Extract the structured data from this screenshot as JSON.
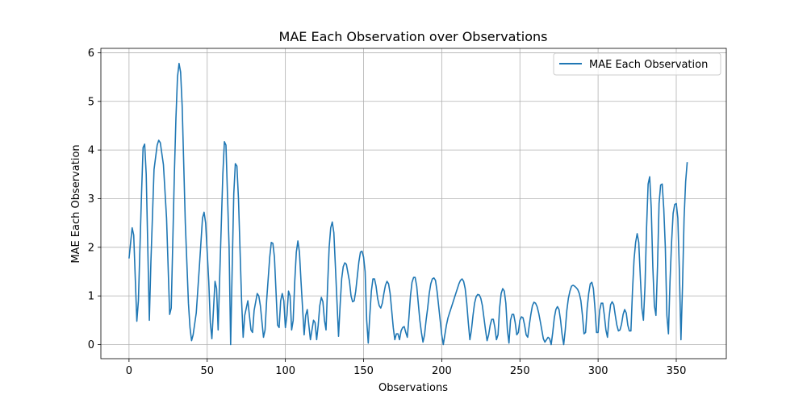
{
  "chart_data": {
    "type": "line",
    "title": "MAE Each Observation over Observations",
    "xlabel": "Observations",
    "ylabel": "MAE Each Observation",
    "xlim": [
      -18,
      382
    ],
    "ylim": [
      -0.29,
      6.09
    ],
    "xticks": [
      0,
      50,
      100,
      150,
      200,
      250,
      300,
      350
    ],
    "yticks": [
      0,
      1,
      2,
      3,
      4,
      5,
      6
    ],
    "grid": true,
    "legend_position": "top-right",
    "line_color": "#1f77b4",
    "series": [
      {
        "name": "MAE Each Observation",
        "points": [
          [
            0,
            1.77
          ],
          [
            2,
            2.4
          ],
          [
            3,
            2.25
          ],
          [
            5,
            0.48
          ],
          [
            6,
            0.9
          ],
          [
            8,
            3.1
          ],
          [
            9,
            4.05
          ],
          [
            10,
            4.12
          ],
          [
            11,
            3.5
          ],
          [
            13,
            0.5
          ],
          [
            14,
            1.7
          ],
          [
            16,
            3.6
          ],
          [
            18,
            4.1
          ],
          [
            19,
            4.2
          ],
          [
            20,
            4.15
          ],
          [
            22,
            3.7
          ],
          [
            24,
            2.6
          ],
          [
            26,
            0.62
          ],
          [
            27,
            0.75
          ],
          [
            29,
            3.5
          ],
          [
            30,
            4.65
          ],
          [
            31,
            5.5
          ],
          [
            32,
            5.78
          ],
          [
            33,
            5.6
          ],
          [
            34,
            4.9
          ],
          [
            36,
            2.5
          ],
          [
            38,
            0.85
          ],
          [
            39,
            0.35
          ],
          [
            40,
            0.08
          ],
          [
            41,
            0.2
          ],
          [
            43,
            0.65
          ],
          [
            45,
            1.6
          ],
          [
            47,
            2.6
          ],
          [
            48,
            2.72
          ],
          [
            49,
            2.5
          ],
          [
            51,
            1.3
          ],
          [
            52,
            0.45
          ],
          [
            53,
            0.12
          ],
          [
            55,
            1.3
          ],
          [
            56,
            1.15
          ],
          [
            57,
            0.3
          ],
          [
            58,
            1.4
          ],
          [
            60,
            3.5
          ],
          [
            61,
            4.17
          ],
          [
            62,
            4.1
          ],
          [
            64,
            2.0
          ],
          [
            65,
            0.0
          ],
          [
            66,
            1.6
          ],
          [
            67,
            3.1
          ],
          [
            68,
            3.72
          ],
          [
            69,
            3.67
          ],
          [
            70,
            3.0
          ],
          [
            72,
            0.9
          ],
          [
            73,
            0.15
          ],
          [
            74,
            0.6
          ],
          [
            76,
            0.9
          ],
          [
            77,
            0.6
          ],
          [
            78,
            0.3
          ],
          [
            79,
            0.25
          ],
          [
            80,
            0.7
          ],
          [
            82,
            1.05
          ],
          [
            83,
            1.0
          ],
          [
            84,
            0.8
          ],
          [
            86,
            0.15
          ],
          [
            87,
            0.3
          ],
          [
            88,
            0.9
          ],
          [
            90,
            1.8
          ],
          [
            91,
            2.1
          ],
          [
            92,
            2.08
          ],
          [
            93,
            1.8
          ],
          [
            95,
            0.4
          ],
          [
            96,
            0.35
          ],
          [
            97,
            0.9
          ],
          [
            98,
            1.05
          ],
          [
            99,
            0.9
          ],
          [
            100,
            0.35
          ],
          [
            101,
            0.6
          ],
          [
            102,
            1.1
          ],
          [
            103,
            1.0
          ],
          [
            104,
            0.3
          ],
          [
            105,
            0.5
          ],
          [
            106,
            1.3
          ],
          [
            107,
            1.9
          ],
          [
            108,
            2.13
          ],
          [
            109,
            1.9
          ],
          [
            110,
            1.3
          ],
          [
            112,
            0.2
          ],
          [
            113,
            0.6
          ],
          [
            114,
            0.72
          ],
          [
            115,
            0.4
          ],
          [
            116,
            0.1
          ],
          [
            118,
            0.5
          ],
          [
            119,
            0.45
          ],
          [
            120,
            0.1
          ],
          [
            121,
            0.4
          ],
          [
            122,
            0.8
          ],
          [
            123,
            0.97
          ],
          [
            124,
            0.88
          ],
          [
            125,
            0.5
          ],
          [
            126,
            0.3
          ],
          [
            127,
            1.2
          ],
          [
            128,
            2.0
          ],
          [
            129,
            2.4
          ],
          [
            130,
            2.52
          ],
          [
            131,
            2.3
          ],
          [
            132,
            1.6
          ],
          [
            134,
            0.17
          ],
          [
            135,
            0.8
          ],
          [
            136,
            1.35
          ],
          [
            137,
            1.6
          ],
          [
            138,
            1.68
          ],
          [
            139,
            1.65
          ],
          [
            141,
            1.3
          ],
          [
            142,
            1.0
          ],
          [
            143,
            0.88
          ],
          [
            144,
            0.9
          ],
          [
            145,
            1.1
          ],
          [
            146,
            1.4
          ],
          [
            147,
            1.7
          ],
          [
            148,
            1.9
          ],
          [
            149,
            1.92
          ],
          [
            150,
            1.8
          ],
          [
            151,
            1.5
          ],
          [
            152,
            0.5
          ],
          [
            153,
            0.03
          ],
          [
            154,
            0.6
          ],
          [
            155,
            1.1
          ],
          [
            156,
            1.35
          ],
          [
            157,
            1.35
          ],
          [
            158,
            1.2
          ],
          [
            159,
            0.95
          ],
          [
            160,
            0.8
          ],
          [
            161,
            0.75
          ],
          [
            162,
            0.85
          ],
          [
            163,
            1.05
          ],
          [
            164,
            1.22
          ],
          [
            165,
            1.3
          ],
          [
            166,
            1.25
          ],
          [
            167,
            1.05
          ],
          [
            168,
            0.7
          ],
          [
            169,
            0.35
          ],
          [
            170,
            0.1
          ],
          [
            171,
            0.22
          ],
          [
            172,
            0.22
          ],
          [
            173,
            0.1
          ],
          [
            174,
            0.28
          ],
          [
            175,
            0.35
          ],
          [
            176,
            0.37
          ],
          [
            177,
            0.25
          ],
          [
            178,
            0.15
          ],
          [
            179,
            0.55
          ],
          [
            180,
            1.0
          ],
          [
            181,
            1.28
          ],
          [
            182,
            1.38
          ],
          [
            183,
            1.38
          ],
          [
            184,
            1.2
          ],
          [
            185,
            0.85
          ],
          [
            186,
            0.5
          ],
          [
            187,
            0.25
          ],
          [
            188,
            0.05
          ],
          [
            189,
            0.2
          ],
          [
            190,
            0.5
          ],
          [
            191,
            0.75
          ],
          [
            192,
            1.05
          ],
          [
            193,
            1.25
          ],
          [
            194,
            1.35
          ],
          [
            195,
            1.37
          ],
          [
            196,
            1.32
          ],
          [
            197,
            1.1
          ],
          [
            198,
            0.8
          ],
          [
            199,
            0.5
          ],
          [
            200,
            0.2
          ],
          [
            201,
            0.0
          ],
          [
            202,
            0.2
          ],
          [
            203,
            0.4
          ],
          [
            204,
            0.55
          ],
          [
            205,
            0.65
          ],
          [
            206,
            0.75
          ],
          [
            207,
            0.85
          ],
          [
            208,
            0.95
          ],
          [
            209,
            1.05
          ],
          [
            210,
            1.15
          ],
          [
            211,
            1.25
          ],
          [
            212,
            1.32
          ],
          [
            213,
            1.35
          ],
          [
            214,
            1.3
          ],
          [
            215,
            1.15
          ],
          [
            216,
            0.85
          ],
          [
            217,
            0.45
          ],
          [
            218,
            0.1
          ],
          [
            219,
            0.3
          ],
          [
            220,
            0.6
          ],
          [
            221,
            0.85
          ],
          [
            222,
            0.98
          ],
          [
            223,
            1.03
          ],
          [
            224,
            1.02
          ],
          [
            225,
            0.95
          ],
          [
            226,
            0.8
          ],
          [
            227,
            0.55
          ],
          [
            228,
            0.3
          ],
          [
            229,
            0.08
          ],
          [
            230,
            0.2
          ],
          [
            231,
            0.4
          ],
          [
            232,
            0.52
          ],
          [
            233,
            0.52
          ],
          [
            234,
            0.35
          ],
          [
            235,
            0.1
          ],
          [
            236,
            0.2
          ],
          [
            237,
            0.75
          ],
          [
            238,
            1.05
          ],
          [
            239,
            1.15
          ],
          [
            240,
            1.1
          ],
          [
            241,
            0.85
          ],
          [
            242,
            0.3
          ],
          [
            243,
            0.03
          ],
          [
            244,
            0.5
          ],
          [
            245,
            0.62
          ],
          [
            246,
            0.62
          ],
          [
            247,
            0.45
          ],
          [
            248,
            0.2
          ],
          [
            249,
            0.25
          ],
          [
            250,
            0.5
          ],
          [
            251,
            0.57
          ],
          [
            252,
            0.55
          ],
          [
            253,
            0.4
          ],
          [
            254,
            0.2
          ],
          [
            255,
            0.15
          ],
          [
            256,
            0.4
          ],
          [
            257,
            0.62
          ],
          [
            258,
            0.8
          ],
          [
            259,
            0.87
          ],
          [
            260,
            0.85
          ],
          [
            261,
            0.78
          ],
          [
            262,
            0.65
          ],
          [
            263,
            0.48
          ],
          [
            264,
            0.3
          ],
          [
            265,
            0.12
          ],
          [
            266,
            0.05
          ],
          [
            267,
            0.1
          ],
          [
            268,
            0.15
          ],
          [
            269,
            0.12
          ],
          [
            270,
            0.0
          ],
          [
            271,
            0.25
          ],
          [
            272,
            0.55
          ],
          [
            273,
            0.72
          ],
          [
            274,
            0.78
          ],
          [
            275,
            0.72
          ],
          [
            276,
            0.5
          ],
          [
            277,
            0.2
          ],
          [
            278,
            0.0
          ],
          [
            279,
            0.3
          ],
          [
            280,
            0.7
          ],
          [
            281,
            0.95
          ],
          [
            282,
            1.1
          ],
          [
            283,
            1.2
          ],
          [
            284,
            1.22
          ],
          [
            285,
            1.2
          ],
          [
            286,
            1.17
          ],
          [
            287,
            1.13
          ],
          [
            288,
            1.05
          ],
          [
            289,
            0.9
          ],
          [
            290,
            0.6
          ],
          [
            291,
            0.22
          ],
          [
            292,
            0.25
          ],
          [
            293,
            0.75
          ],
          [
            294,
            1.05
          ],
          [
            295,
            1.25
          ],
          [
            296,
            1.28
          ],
          [
            297,
            1.15
          ],
          [
            298,
            0.75
          ],
          [
            299,
            0.25
          ],
          [
            300,
            0.25
          ],
          [
            301,
            0.7
          ],
          [
            302,
            0.85
          ],
          [
            303,
            0.85
          ],
          [
            304,
            0.6
          ],
          [
            305,
            0.3
          ],
          [
            306,
            0.15
          ],
          [
            307,
            0.55
          ],
          [
            308,
            0.82
          ],
          [
            309,
            0.88
          ],
          [
            310,
            0.82
          ],
          [
            311,
            0.6
          ],
          [
            312,
            0.4
          ],
          [
            313,
            0.28
          ],
          [
            314,
            0.3
          ],
          [
            315,
            0.42
          ],
          [
            316,
            0.62
          ],
          [
            317,
            0.72
          ],
          [
            318,
            0.65
          ],
          [
            319,
            0.4
          ],
          [
            320,
            0.28
          ],
          [
            321,
            0.28
          ],
          [
            322,
            1.1
          ],
          [
            323,
            1.75
          ],
          [
            324,
            2.1
          ],
          [
            325,
            2.28
          ],
          [
            326,
            2.1
          ],
          [
            327,
            1.4
          ],
          [
            328,
            0.75
          ],
          [
            329,
            0.5
          ],
          [
            330,
            1.2
          ],
          [
            331,
            2.4
          ],
          [
            332,
            3.3
          ],
          [
            333,
            3.45
          ],
          [
            334,
            2.8
          ],
          [
            335,
            1.6
          ],
          [
            336,
            0.8
          ],
          [
            337,
            0.6
          ],
          [
            338,
            1.6
          ],
          [
            339,
            2.9
          ],
          [
            340,
            3.28
          ],
          [
            341,
            3.3
          ],
          [
            342,
            2.8
          ],
          [
            343,
            2.0
          ],
          [
            344,
            0.6
          ],
          [
            345,
            0.22
          ],
          [
            346,
            1.3
          ],
          [
            347,
            2.1
          ],
          [
            348,
            2.7
          ],
          [
            349,
            2.88
          ],
          [
            350,
            2.9
          ],
          [
            351,
            2.6
          ],
          [
            352,
            1.5
          ],
          [
            353,
            0.1
          ],
          [
            354,
            1.2
          ],
          [
            355,
            2.6
          ],
          [
            356,
            3.35
          ],
          [
            357,
            3.75
          ]
        ]
      }
    ]
  }
}
